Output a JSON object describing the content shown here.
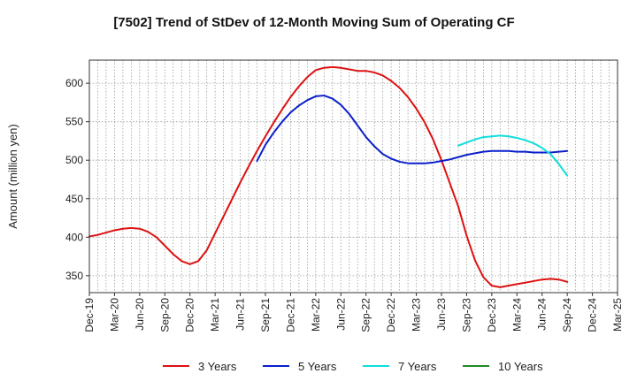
{
  "chart_data": {
    "type": "line",
    "title": "[7502]  Trend of StDev of 12-Month Moving Sum of Operating CF",
    "xlabel": "",
    "ylabel": "Amount (million yen)",
    "ylim": [
      328,
      630
    ],
    "yticks": [
      350,
      400,
      450,
      500,
      550,
      600
    ],
    "x_ticks": [
      "Dec-19",
      "Mar-20",
      "Jun-20",
      "Sep-20",
      "Dec-20",
      "Mar-21",
      "Jun-21",
      "Sep-21",
      "Dec-21",
      "Mar-22",
      "Jun-22",
      "Sep-22",
      "Dec-22",
      "Mar-23",
      "Jun-23",
      "Sep-23",
      "Dec-23",
      "Mar-24",
      "Jun-24",
      "Sep-24",
      "Dec-24",
      "Mar-25"
    ],
    "grid": true,
    "legend_position": "bottom",
    "series": [
      {
        "name": "3 Years",
        "color": "#dd1111",
        "x": [
          "Dec-19",
          "Jan-20",
          "Feb-20",
          "Mar-20",
          "Apr-20",
          "May-20",
          "Jun-20",
          "Jul-20",
          "Aug-20",
          "Sep-20",
          "Oct-20",
          "Nov-20",
          "Dec-20",
          "Jan-21",
          "Feb-21",
          "Mar-21",
          "Apr-21",
          "May-21",
          "Jun-21",
          "Jul-21",
          "Aug-21",
          "Sep-21",
          "Oct-21",
          "Nov-21",
          "Dec-21",
          "Jan-22",
          "Feb-22",
          "Mar-22",
          "Apr-22",
          "May-22",
          "Jun-22",
          "Jul-22",
          "Aug-22",
          "Sep-22",
          "Oct-22",
          "Nov-22",
          "Dec-22",
          "Jan-23",
          "Feb-23",
          "Mar-23",
          "Apr-23",
          "May-23",
          "Jun-23",
          "Jul-23",
          "Aug-23",
          "Sep-23",
          "Oct-23",
          "Nov-23",
          "Dec-23",
          "Jan-24",
          "Feb-24",
          "Mar-24",
          "Apr-24",
          "May-24",
          "Jun-24",
          "Jul-24",
          "Aug-24",
          "Sep-24"
        ],
        "values": [
          401,
          403,
          406,
          409,
          411,
          412,
          411,
          407,
          400,
          389,
          378,
          369,
          365,
          369,
          383,
          405,
          427,
          449,
          471,
          492,
          512,
          531,
          549,
          566,
          582,
          596,
          608,
          617,
          620,
          621,
          620,
          618,
          616,
          616,
          614,
          610,
          603,
          594,
          582,
          567,
          549,
          527,
          500,
          470,
          440,
          402,
          370,
          348,
          337,
          335,
          337,
          339,
          341,
          343,
          345,
          346,
          345,
          342
        ]
      },
      {
        "name": "5 Years",
        "color": "#0a1fcc",
        "x": [
          "Aug-21",
          "Sep-21",
          "Oct-21",
          "Nov-21",
          "Dec-21",
          "Jan-22",
          "Feb-22",
          "Mar-22",
          "Apr-22",
          "May-22",
          "Jun-22",
          "Jul-22",
          "Aug-22",
          "Sep-22",
          "Oct-22",
          "Nov-22",
          "Dec-22",
          "Jan-23",
          "Feb-23",
          "Mar-23",
          "Apr-23",
          "May-23",
          "Jun-23",
          "Jul-23",
          "Aug-23",
          "Sep-23",
          "Oct-23",
          "Nov-23",
          "Dec-23",
          "Jan-24",
          "Feb-24",
          "Mar-24",
          "Apr-24",
          "May-24",
          "Jun-24",
          "Jul-24",
          "Aug-24",
          "Sep-24"
        ],
        "values": [
          499,
          520,
          536,
          550,
          562,
          571,
          578,
          583,
          584,
          580,
          572,
          560,
          545,
          530,
          518,
          508,
          502,
          498,
          496,
          496,
          496,
          497,
          499,
          501,
          504,
          507,
          509,
          511,
          512,
          512,
          512,
          511,
          511,
          510,
          510,
          510,
          511,
          512
        ]
      },
      {
        "name": "7 Years",
        "color": "#11dddd",
        "x": [
          "Aug-23",
          "Sep-23",
          "Oct-23",
          "Nov-23",
          "Dec-23",
          "Jan-24",
          "Feb-24",
          "Mar-24",
          "Apr-24",
          "May-24",
          "Jun-24",
          "Jul-24",
          "Aug-24",
          "Sep-24"
        ],
        "values": [
          519,
          523,
          527,
          530,
          531,
          532,
          531,
          529,
          526,
          522,
          516,
          508,
          495,
          480
        ]
      },
      {
        "name": "10 Years",
        "color": "#228822",
        "x": [],
        "values": []
      }
    ]
  }
}
